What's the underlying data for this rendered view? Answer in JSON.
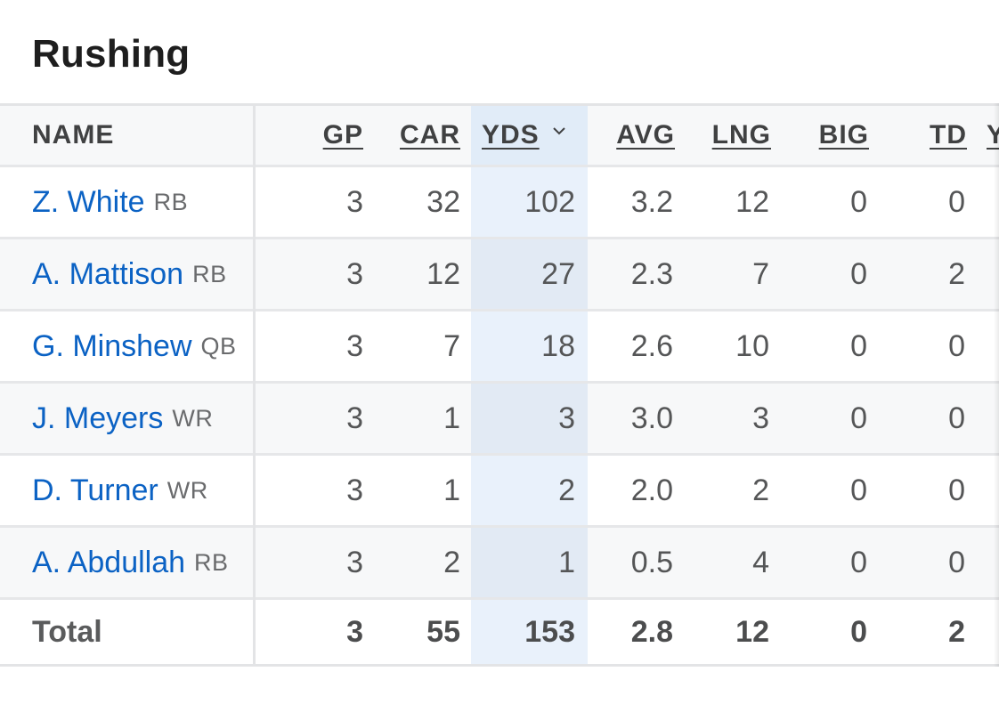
{
  "section": {
    "title": "Rushing"
  },
  "columns": {
    "name": "NAME",
    "gp": "GP",
    "car": "CAR",
    "yds": "YDS",
    "avg": "AVG",
    "lng": "LNG",
    "big": "BIG",
    "td": "TD",
    "cut": "Y"
  },
  "sort": {
    "column": "YDS",
    "direction": "descending",
    "icon": "chevron-down-icon"
  },
  "players": [
    {
      "name": "Z. White",
      "pos": "RB",
      "gp": "3",
      "car": "32",
      "yds": "102",
      "avg": "3.2",
      "lng": "12",
      "big": "0",
      "td": "0"
    },
    {
      "name": "A. Mattison",
      "pos": "RB",
      "gp": "3",
      "car": "12",
      "yds": "27",
      "avg": "2.3",
      "lng": "7",
      "big": "0",
      "td": "2"
    },
    {
      "name": "G. Minshew",
      "pos": "QB",
      "gp": "3",
      "car": "7",
      "yds": "18",
      "avg": "2.6",
      "lng": "10",
      "big": "0",
      "td": "0"
    },
    {
      "name": "J. Meyers",
      "pos": "WR",
      "gp": "3",
      "car": "1",
      "yds": "3",
      "avg": "3.0",
      "lng": "3",
      "big": "0",
      "td": "0"
    },
    {
      "name": "D. Turner",
      "pos": "WR",
      "gp": "3",
      "car": "1",
      "yds": "2",
      "avg": "2.0",
      "lng": "2",
      "big": "0",
      "td": "0"
    },
    {
      "name": "A. Abdullah",
      "pos": "RB",
      "gp": "3",
      "car": "2",
      "yds": "1",
      "avg": "0.5",
      "lng": "4",
      "big": "0",
      "td": "0"
    }
  ],
  "total": {
    "label": "Total",
    "gp": "3",
    "car": "55",
    "yds": "153",
    "avg": "2.8",
    "lng": "12",
    "big": "0",
    "td": "2"
  },
  "colors": {
    "link": "#0b62c4",
    "sorted_column": "#e9f1fb",
    "alt_row": "#f7f8f9"
  }
}
